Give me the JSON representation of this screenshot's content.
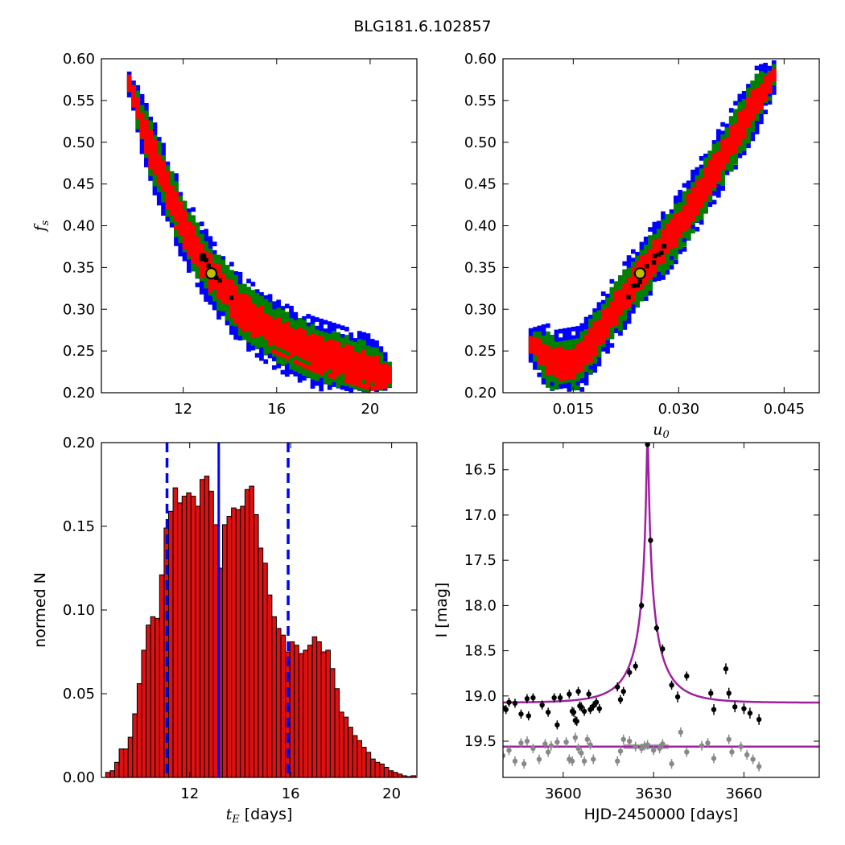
{
  "figure_title": "BLG181.6.102857",
  "colors": {
    "sigma1": "#ff0000",
    "sigma2": "#008000",
    "sigma3": "#0000ff",
    "best": "#000000",
    "marker_fill": "#bfbf00",
    "model": "#a020a0",
    "hist_bar": "#dd1111",
    "median_line": "#0000ff",
    "baseline_points": "#888888"
  },
  "chart_data": [
    {
      "type": "heatmap",
      "panel": "fs-vs-tE",
      "xlabel": "",
      "ylabel": "f_s",
      "xlim": [
        8.5,
        22
      ],
      "ylim": [
        0.2,
        0.6
      ],
      "xticks": [
        "12",
        "16",
        "20"
      ],
      "yticks": [
        "0.20",
        "0.25",
        "0.30",
        "0.35",
        "0.40",
        "0.45",
        "0.50",
        "0.55",
        "0.60"
      ],
      "ridge": [
        [
          9.6,
          0.58
        ],
        [
          10.5,
          0.5
        ],
        [
          12.0,
          0.4
        ],
        [
          13.2,
          0.343
        ],
        [
          14.5,
          0.3
        ],
        [
          16.0,
          0.27
        ],
        [
          17.5,
          0.25
        ],
        [
          19.5,
          0.232
        ],
        [
          21.0,
          0.22
        ]
      ],
      "best_fit": {
        "x": 13.2,
        "y": 0.343
      },
      "levels": [
        "1-sigma (red)",
        "2-sigma (green)",
        "3-sigma (blue)"
      ]
    },
    {
      "type": "heatmap",
      "panel": "fs-vs-u0",
      "xlabel": "u_0",
      "ylabel": "",
      "xlim": [
        0.005,
        0.05
      ],
      "ylim": [
        0.2,
        0.6
      ],
      "xticks": [
        "0.015",
        "0.030",
        "0.045"
      ],
      "yticks": [
        "0.20",
        "0.25",
        "0.30",
        "0.35",
        "0.40",
        "0.45",
        "0.50",
        "0.55",
        "0.60"
      ],
      "ridge": [
        [
          0.0085,
          0.262
        ],
        [
          0.0125,
          0.235
        ],
        [
          0.016,
          0.24
        ],
        [
          0.02,
          0.29
        ],
        [
          0.0245,
          0.343
        ],
        [
          0.03,
          0.4
        ],
        [
          0.036,
          0.48
        ],
        [
          0.041,
          0.55
        ],
        [
          0.044,
          0.585
        ]
      ],
      "best_fit": {
        "x": 0.0245,
        "y": 0.343
      }
    },
    {
      "type": "bar",
      "panel": "tE-histogram",
      "xlabel": "t_E [days]",
      "ylabel": "normed N",
      "xlim": [
        8.5,
        21.0
      ],
      "ylim": [
        0.0,
        0.2
      ],
      "xticks": [
        "12",
        "16",
        "20"
      ],
      "yticks": [
        "0.00",
        "0.05",
        "0.10",
        "0.15",
        "0.20"
      ],
      "bin_start": 8.67,
      "bin_width": 0.178,
      "values": [
        0.003,
        0.004,
        0.009,
        0.017,
        0.017,
        0.024,
        0.038,
        0.056,
        0.076,
        0.091,
        0.096,
        0.095,
        0.121,
        0.149,
        0.159,
        0.173,
        0.164,
        0.168,
        0.17,
        0.168,
        0.162,
        0.178,
        0.18,
        0.171,
        0.151,
        0.125,
        0.151,
        0.156,
        0.161,
        0.16,
        0.162,
        0.172,
        0.174,
        0.157,
        0.137,
        0.128,
        0.109,
        0.096,
        0.089,
        0.085,
        0.075,
        0.081,
        0.079,
        0.074,
        0.076,
        0.079,
        0.084,
        0.081,
        0.075,
        0.076,
        0.065,
        0.053,
        0.039,
        0.036,
        0.03,
        0.025,
        0.022,
        0.018,
        0.015,
        0.011,
        0.009,
        0.008,
        0.006,
        0.004,
        0.003,
        0.002,
        0.001,
        0.0005,
        0.001
      ],
      "median": 13.15,
      "interval": [
        11.1,
        15.9
      ]
    },
    {
      "type": "line",
      "panel": "light-curve",
      "xlabel": "HJD-2450000 [days]",
      "ylabel": "I [mag]",
      "xlim": [
        3580,
        3685
      ],
      "ylim": [
        19.9,
        16.2
      ],
      "xticks": [
        "3600",
        "3630",
        "3660"
      ],
      "yticks": [
        "16.5",
        "17.0",
        "17.5",
        "18.0",
        "18.5",
        "19.0",
        "19.5"
      ],
      "model": {
        "t0": 3628.0,
        "tE": 13.2,
        "u0": 0.0245,
        "fs": 0.343,
        "baseline": 19.075,
        "subtracted_level": 19.56
      },
      "series": [
        {
          "name": "",
          "points": [
            [
              3580,
              19.13,
              0.06
            ],
            [
              3581,
              19.15,
              0.05
            ],
            [
              3582,
              19.07,
              0.05
            ],
            [
              3584,
              19.08,
              0.05
            ],
            [
              3586,
              19.2,
              0.05
            ],
            [
              3588,
              19.03,
              0.05
            ],
            [
              3588.5,
              19.22,
              0.05
            ],
            [
              3590,
              19.02,
              0.05
            ],
            [
              3593,
              19.1,
              0.05
            ],
            [
              3595,
              19.18,
              0.05
            ],
            [
              3597,
              19.02,
              0.05
            ],
            [
              3598,
              19.32,
              0.05
            ],
            [
              3599,
              19.02,
              0.05
            ],
            [
              3602,
              18.98,
              0.05
            ],
            [
              3603,
              19.17,
              0.05
            ],
            [
              3603.5,
              19.18,
              0.05
            ],
            [
              3604,
              19.27,
              0.05
            ],
            [
              3604.5,
              19.28,
              0.05
            ],
            [
              3605,
              18.95,
              0.05
            ],
            [
              3605.5,
              19.11,
              0.05
            ],
            [
              3606,
              19.12,
              0.05
            ],
            [
              3607,
              19.17,
              0.05
            ],
            [
              3608.5,
              18.98,
              0.05
            ],
            [
              3609,
              19.15,
              0.05
            ],
            [
              3610,
              19.11,
              0.05
            ],
            [
              3611,
              19.07,
              0.05
            ],
            [
              3612,
              19.14,
              0.05
            ],
            [
              3618,
              18.9,
              0.05
            ],
            [
              3619,
              19.04,
              0.05
            ],
            [
              3620,
              18.95,
              0.05
            ],
            [
              3622,
              18.74,
              0.05
            ],
            [
              3624,
              18.67,
              0.05
            ],
            [
              3626,
              18.0,
              0.04
            ],
            [
              3628,
              16.22,
              0.02
            ],
            [
              3629,
              17.28,
              0.03
            ],
            [
              3631,
              18.25,
              0.04
            ],
            [
              3633,
              18.48,
              0.05
            ],
            [
              3636,
              18.88,
              0.05
            ],
            [
              3638,
              19.01,
              0.06
            ],
            [
              3641,
              18.78,
              0.05
            ],
            [
              3649,
              18.97,
              0.05
            ],
            [
              3650,
              19.15,
              0.06
            ],
            [
              3654,
              18.7,
              0.06
            ],
            [
              3655,
              18.97,
              0.06
            ],
            [
              3657,
              19.12,
              0.06
            ],
            [
              3660,
              19.14,
              0.06
            ],
            [
              3662,
              19.19,
              0.06
            ],
            [
              3665,
              19.26,
              0.06
            ]
          ]
        },
        {
          "name": "",
          "points": [
            [
              3580,
              19.66
            ],
            [
              3582,
              19.6
            ],
            [
              3584,
              19.72
            ],
            [
              3586,
              19.52
            ],
            [
              3587,
              19.75
            ],
            [
              3588,
              19.5
            ],
            [
              3590,
              19.58
            ],
            [
              3592,
              19.7
            ],
            [
              3594,
              19.53
            ],
            [
              3595,
              19.62
            ],
            [
              3596,
              19.55
            ],
            [
              3598,
              19.51
            ],
            [
              3601,
              19.51
            ],
            [
              3602,
              19.7
            ],
            [
              3603,
              19.72
            ],
            [
              3604,
              19.46
            ],
            [
              3605,
              19.58
            ],
            [
              3606,
              19.63
            ],
            [
              3607,
              19.72
            ],
            [
              3608,
              19.48
            ],
            [
              3609,
              19.54
            ],
            [
              3610,
              19.7
            ],
            [
              3618,
              19.72
            ],
            [
              3619,
              19.61
            ],
            [
              3620,
              19.48
            ],
            [
              3622,
              19.5
            ],
            [
              3624,
              19.56
            ],
            [
              3626,
              19.58
            ],
            [
              3627,
              19.55
            ],
            [
              3628,
              19.54
            ],
            [
              3630,
              19.6
            ],
            [
              3632,
              19.58
            ],
            [
              3633,
              19.53
            ],
            [
              3636,
              19.75
            ],
            [
              3639,
              19.4
            ],
            [
              3641,
              19.62
            ],
            [
              3646,
              19.55
            ],
            [
              3648,
              19.52
            ],
            [
              3650,
              19.69
            ],
            [
              3655,
              19.48
            ],
            [
              3656,
              19.62
            ],
            [
              3659,
              19.56
            ],
            [
              3661,
              19.65
            ],
            [
              3663,
              19.7
            ],
            [
              3665,
              19.78
            ]
          ]
        }
      ]
    }
  ]
}
